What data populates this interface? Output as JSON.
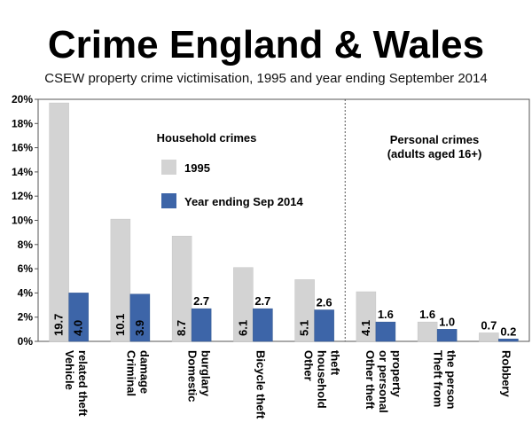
{
  "title": "Crime England & Wales",
  "subtitle": "CSEW property crime victimisation, 1995 and year ending September 2014",
  "chart_data": {
    "type": "bar",
    "title": "Crime England & Wales",
    "subtitle": "CSEW property crime victimisation, 1995 and year ending September 2014",
    "categories": [
      [
        "Vehicle",
        "related theft"
      ],
      [
        "Criminal",
        "damage"
      ],
      [
        "Domestic",
        "burglary"
      ],
      [
        "Bicycle theft"
      ],
      [
        "Other",
        "household",
        "theft"
      ],
      [
        "Other theft",
        "or personal",
        "property"
      ],
      [
        "Theft from",
        "the person"
      ],
      [
        "Robbery"
      ]
    ],
    "series": [
      {
        "name": "1995",
        "color": "#d3d3d3",
        "values": [
          19.7,
          10.1,
          8.7,
          6.1,
          5.1,
          4.1,
          1.6,
          0.7
        ]
      },
      {
        "name": "Year ending Sep 2014",
        "color": "#3d65a8",
        "values": [
          4.0,
          3.9,
          2.7,
          2.7,
          2.6,
          1.6,
          1.0,
          0.2
        ]
      }
    ],
    "value_labels": [
      [
        "19.7",
        "10.1",
        "8.7",
        "6.1",
        "5.1",
        "4.1",
        "1.6",
        "0.7"
      ],
      [
        "4.0",
        "3.9",
        "2.7",
        "2.7",
        "2.6",
        "1.6",
        "1.0",
        "0.2"
      ]
    ],
    "ylim": [
      0,
      20
    ],
    "yticks": [
      "0%",
      "2%",
      "4%",
      "6%",
      "8%",
      "10%",
      "12%",
      "14%",
      "16%",
      "18%",
      "20%"
    ],
    "groups": [
      {
        "label": [
          "Household crimes"
        ],
        "categories": [
          0,
          1,
          2,
          3,
          4
        ]
      },
      {
        "label": [
          "Personal crimes",
          "(adults aged 16+)"
        ],
        "categories": [
          5,
          6,
          7
        ]
      }
    ],
    "grid": false,
    "legend_position": "inside-top-left"
  }
}
